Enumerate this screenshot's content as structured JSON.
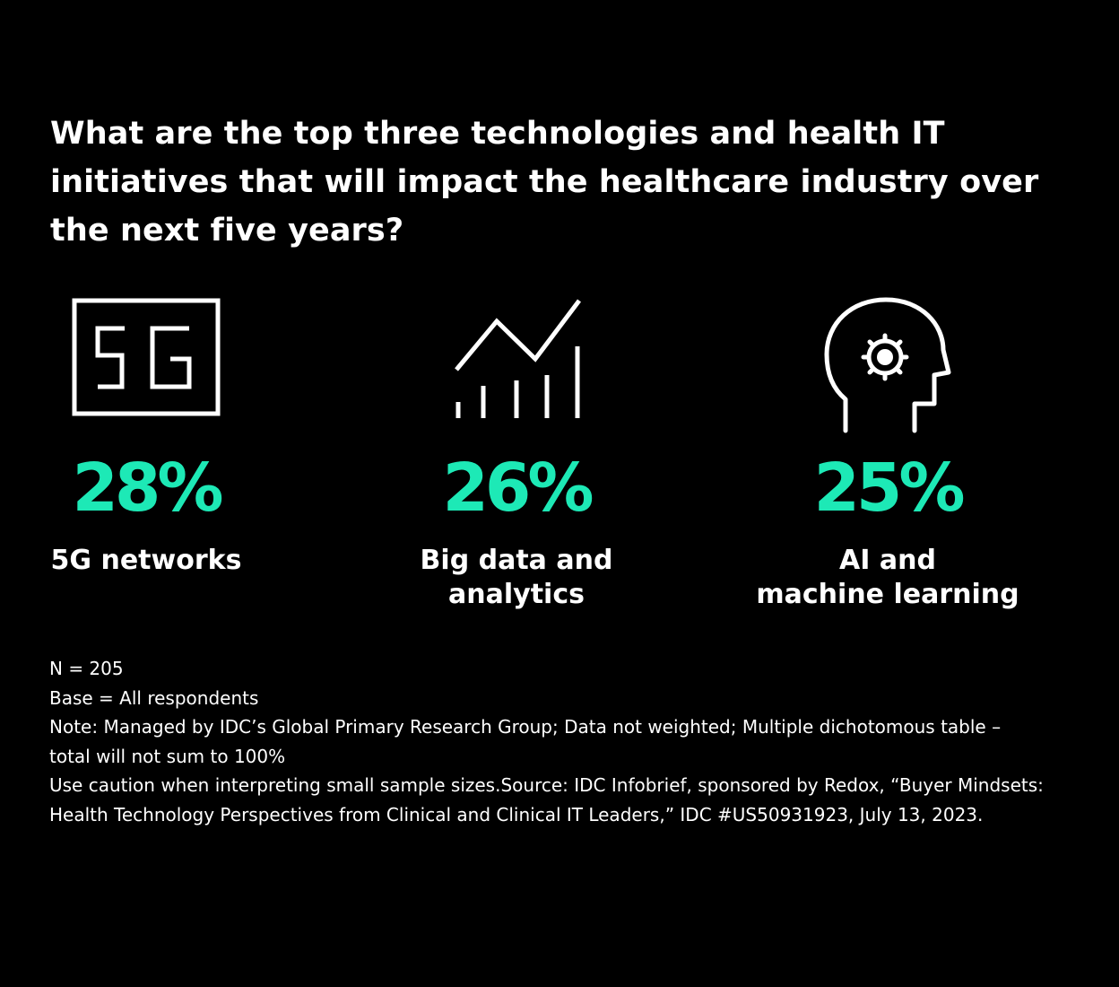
{
  "title": "What are the top three technologies and health IT initiatives that will impact the healthcare industry over the next five years?",
  "colors": {
    "background": "#000000",
    "text": "#ffffff",
    "accent": "#1de9b6"
  },
  "chart_data": {
    "type": "table",
    "title": "What are the top three technologies and health IT initiatives that will impact the healthcare industry over the next five years?",
    "categories": [
      "5G networks",
      "Big data and analytics",
      "AI and machine learning"
    ],
    "values": [
      28,
      26,
      25
    ],
    "unit": "%"
  },
  "stats": [
    {
      "icon": "5g-icon",
      "value": "28%",
      "label": "5G networks"
    },
    {
      "icon": "chart-trend-icon",
      "value": "26%",
      "label": "Big data and\nanalytics"
    },
    {
      "icon": "head-gear-icon",
      "value": "25%",
      "label": "AI and\nmachine learning"
    }
  ],
  "notes": {
    "n": "N = 205",
    "base": "Base = All respondents",
    "note": "Note: Managed by IDC’s Global Primary Research Group; Data not weighted; Multiple dichotomous table – total will not sum to 100%",
    "caution": "Use caution when interpreting small sample sizes.Source: IDC Infobrief, sponsored by Redox, “Buyer Mindsets: Health Technology Perspectives from Clinical and Clinical IT Leaders,” IDC #US50931923, July 13, 2023."
  }
}
